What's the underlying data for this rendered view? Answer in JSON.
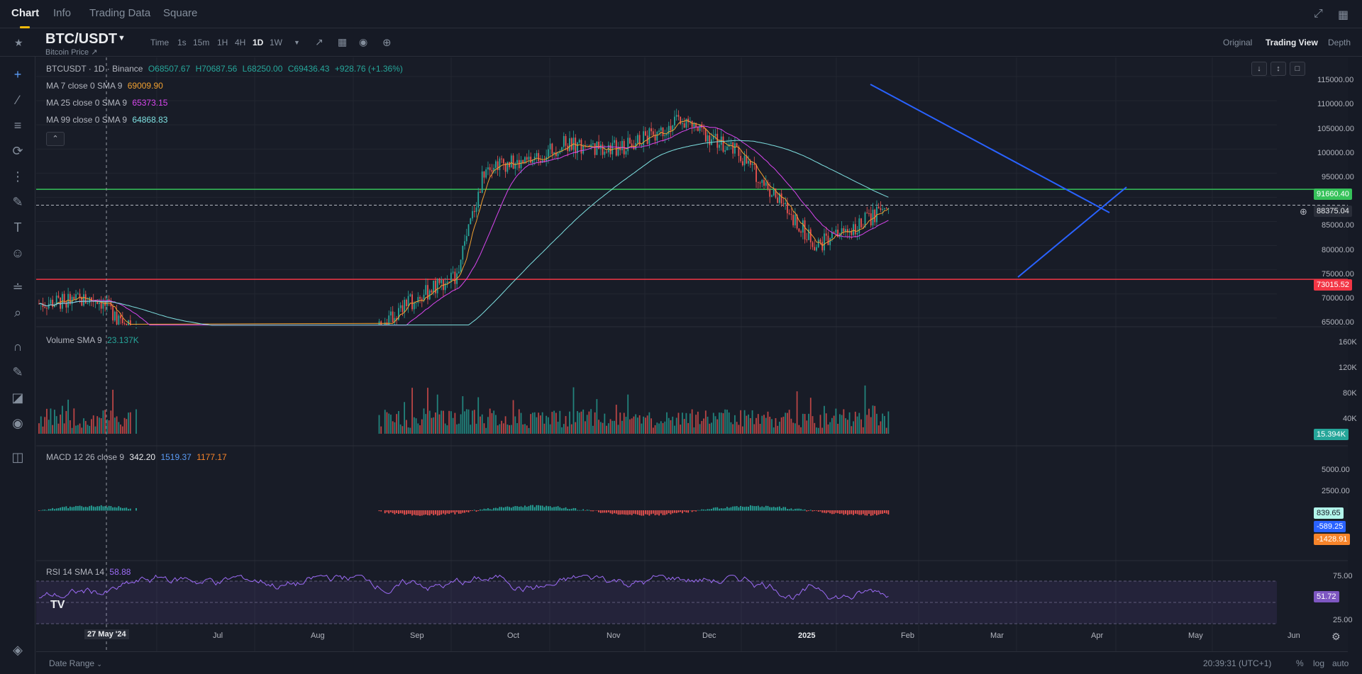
{
  "nav": {
    "tabs": [
      "Chart",
      "Info",
      "Trading Data",
      "Square"
    ],
    "active_tab": "Chart",
    "icons": [
      "collapse-icon",
      "grid-icon"
    ]
  },
  "toolbar": {
    "pair": "BTC/USDT",
    "subtitle": "Bitcoin Price ↗",
    "timeframes": [
      "Time",
      "1s",
      "15m",
      "1H",
      "4H",
      "1D",
      "1W"
    ],
    "active_timeframe": "1D",
    "views": [
      "Original",
      "Trading View",
      "Depth"
    ],
    "active_view": "Trading View"
  },
  "chart_data": {
    "type": "candlestick",
    "symbol_line": "BTCUSDT · 1D · Binance",
    "ohlc": {
      "O": "68507.67",
      "H": "70687.56",
      "L": "68250.00",
      "C": "69436.43",
      "change": "+928.76 (+1.36%)"
    },
    "ma": [
      {
        "label": "MA 7 close 0 SMA 9",
        "value": "69009.90",
        "color": "#f0a030"
      },
      {
        "label": "MA 25 close 0 SMA 9",
        "value": "65373.15",
        "color": "#d946ef"
      },
      {
        "label": "MA 99 close 0 SMA 9",
        "value": "64868.83",
        "color": "#7ee0e0"
      }
    ],
    "price_axis": [
      "115000.00",
      "110000.00",
      "105000.00",
      "100000.00",
      "95000.00",
      "90000.00",
      "85000.00",
      "80000.00",
      "75000.00",
      "70000.00",
      "65000.00"
    ],
    "price_range": [
      63500,
      117500
    ],
    "horizontal_lines": [
      {
        "value": 91660.4,
        "label": "91660.40",
        "color": "#36c25a"
      },
      {
        "value": 73015.52,
        "label": "73015.52",
        "color": "#f23645"
      }
    ],
    "last_price": {
      "value": 88375.04,
      "label": "88375.04"
    },
    "volume": {
      "label": "Volume SMA 9",
      "value": "23.137K",
      "axis": [
        "160K",
        "120K",
        "80K",
        "40K"
      ],
      "last": "15.394K"
    },
    "macd": {
      "label": "MACD 12 26 close 9",
      "values": [
        "342.20",
        "1519.37",
        "1177.17"
      ],
      "colors": [
        "#eaecef",
        "#5b9cf6",
        "#f7842a"
      ],
      "axis": [
        "5000.00",
        "2500.00",
        "-2500.00"
      ],
      "tags": [
        {
          "label": "839.65",
          "color": "#b2f5ea"
        },
        {
          "label": "-589.25",
          "color": "#2962ff"
        },
        {
          "label": "-1428.91",
          "color": "#f7842a"
        }
      ]
    },
    "rsi": {
      "label": "RSI 14 SMA 14",
      "value": "58.88",
      "axis": [
        "75.00",
        "25.00"
      ],
      "last": "51.72"
    },
    "x_axis": [
      "27 May '24",
      "Jul",
      "Aug",
      "Sep",
      "Oct",
      "Nov",
      "Dec",
      "2025",
      "Feb",
      "Mar",
      "Apr",
      "May",
      "Jun"
    ]
  },
  "bottom": {
    "date_range": "Date Range",
    "time": "20:39:31 (UTC+1)",
    "options": [
      "%",
      "log",
      "auto"
    ]
  }
}
